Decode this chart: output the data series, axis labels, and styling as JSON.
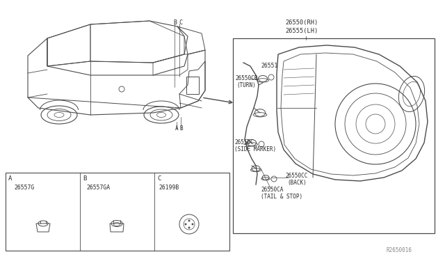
{
  "bg_color": "#ffffff",
  "line_color": "#4a4a4a",
  "text_color": "#2a2a2a",
  "font_size": 5.8,
  "diagram_id": "R2650016",
  "parts_labels": {
    "rh_lh_1": "26550(RH)",
    "rh_lh_2": "26555(LH)",
    "turn_num": "26550CB",
    "turn_name": "(TURN)",
    "harness_num": "26551",
    "side_num": "26550C",
    "side_name": "(SIDE MARKER)",
    "back_num": "26550CC",
    "back_name": "(BACK)",
    "tail_num": "26550CA",
    "tail_name": "(TAIL & STOP)",
    "box_a_num": "26557G",
    "box_b_num": "26557GA",
    "box_c_num": "26199B"
  }
}
